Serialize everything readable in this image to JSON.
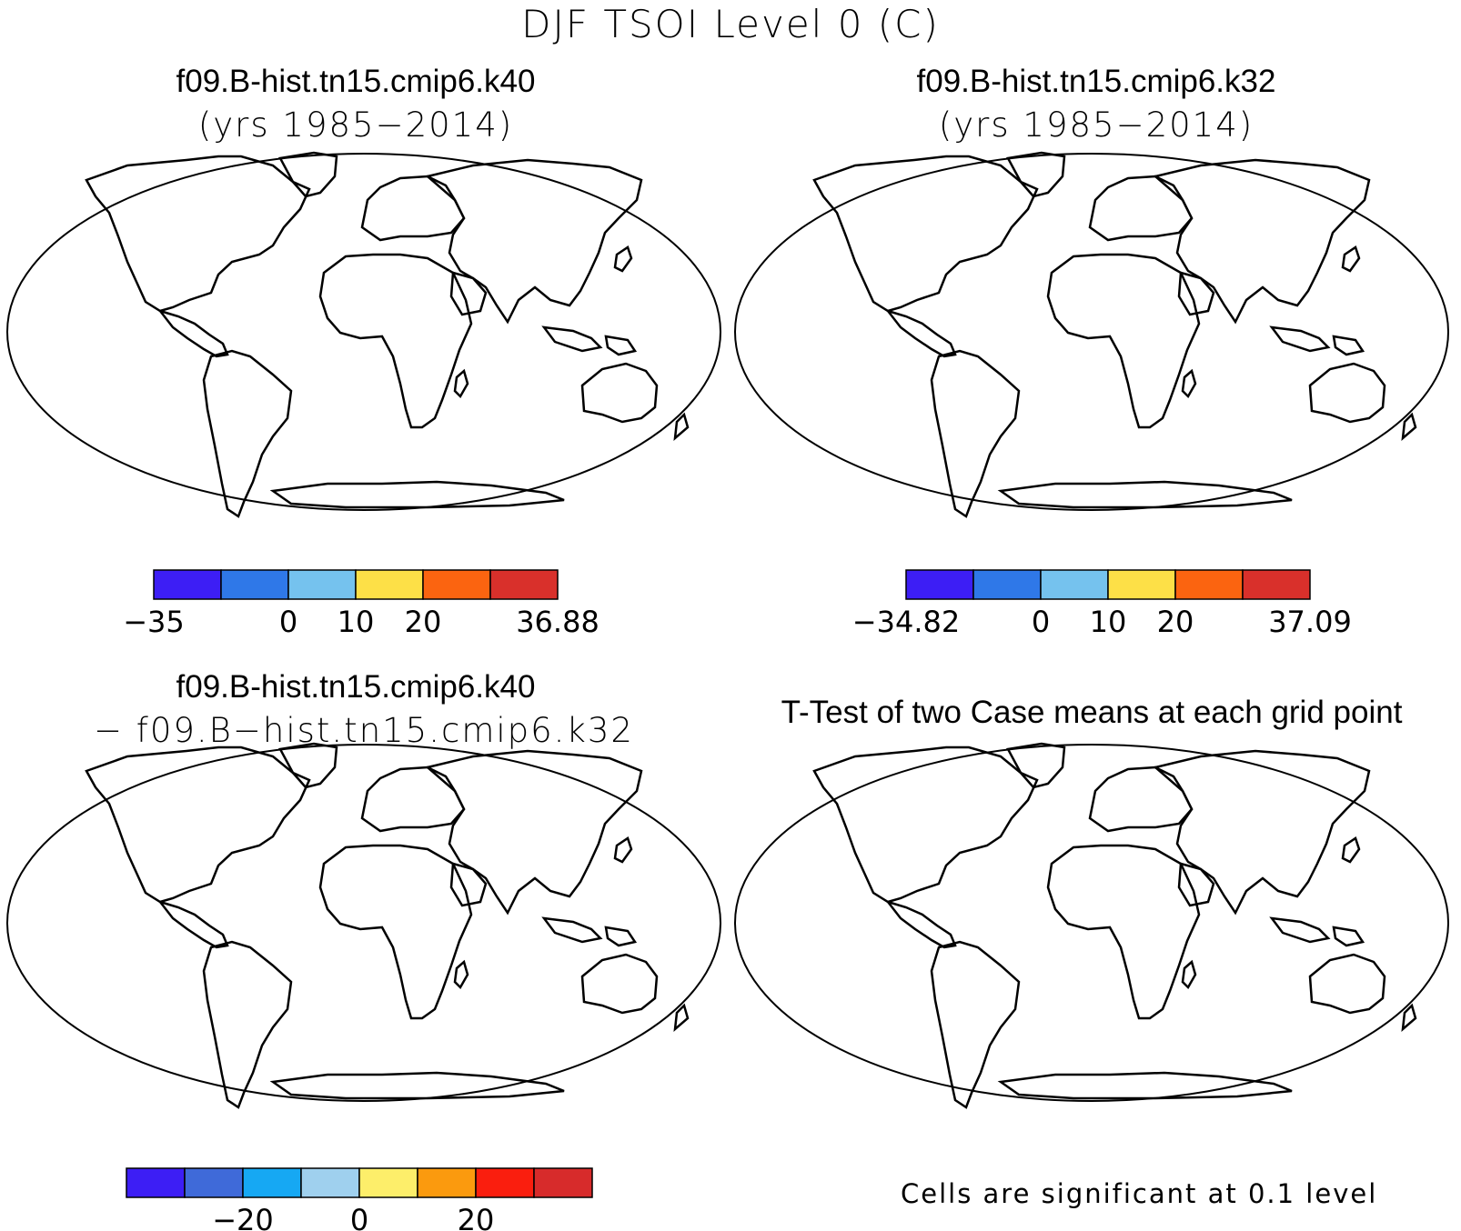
{
  "title": "DJF TSOI Level 0 (C)",
  "panels": {
    "top_left": {
      "case": "f09.B-hist.tn15.cmip6.k40",
      "years": "(yrs 1985−2014)"
    },
    "top_right": {
      "case": "f09.B-hist.tn15.cmip6.k32",
      "years": "(yrs 1985−2014)"
    },
    "bottom_left": {
      "case": "f09.B-hist.tn15.cmip6.k40",
      "minus_case": "− f09.B−hist.tn15.cmip6.k32"
    },
    "bottom_right": {
      "title": "T-Test of two Case means at each grid point",
      "note": "Cells are significant at 0.1 level"
    }
  },
  "colorbars": {
    "top_left": {
      "colors": [
        "#3d1ef5",
        "#2f78e8",
        "#75c2ee",
        "#fde047",
        "#fb6410",
        "#d9302b"
      ],
      "labels": [
        "−35",
        "0",
        "10",
        "20",
        "36.88"
      ],
      "label_positions": [
        0,
        2,
        3,
        4,
        6
      ]
    },
    "top_right": {
      "colors": [
        "#3d1ef5",
        "#2f78e8",
        "#75c2ee",
        "#fde047",
        "#fb6410",
        "#d9302b"
      ],
      "labels": [
        "−34.82",
        "0",
        "10",
        "20",
        "37.09"
      ],
      "label_positions": [
        0,
        2,
        3,
        4,
        6
      ]
    },
    "bottom_left": {
      "colors": [
        "#3d1ef5",
        "#3f6ad9",
        "#16a8f3",
        "#9fd0ee",
        "#fdee6a",
        "#fb9a0e",
        "#fa1e0e",
        "#d72b2b"
      ],
      "labels": [
        "−20",
        "0",
        "20"
      ],
      "label_positions": [
        2,
        4,
        6
      ]
    }
  },
  "colors": {
    "ocean": "#ffffff",
    "coast": "#000000",
    "significant": "#ff0000"
  }
}
